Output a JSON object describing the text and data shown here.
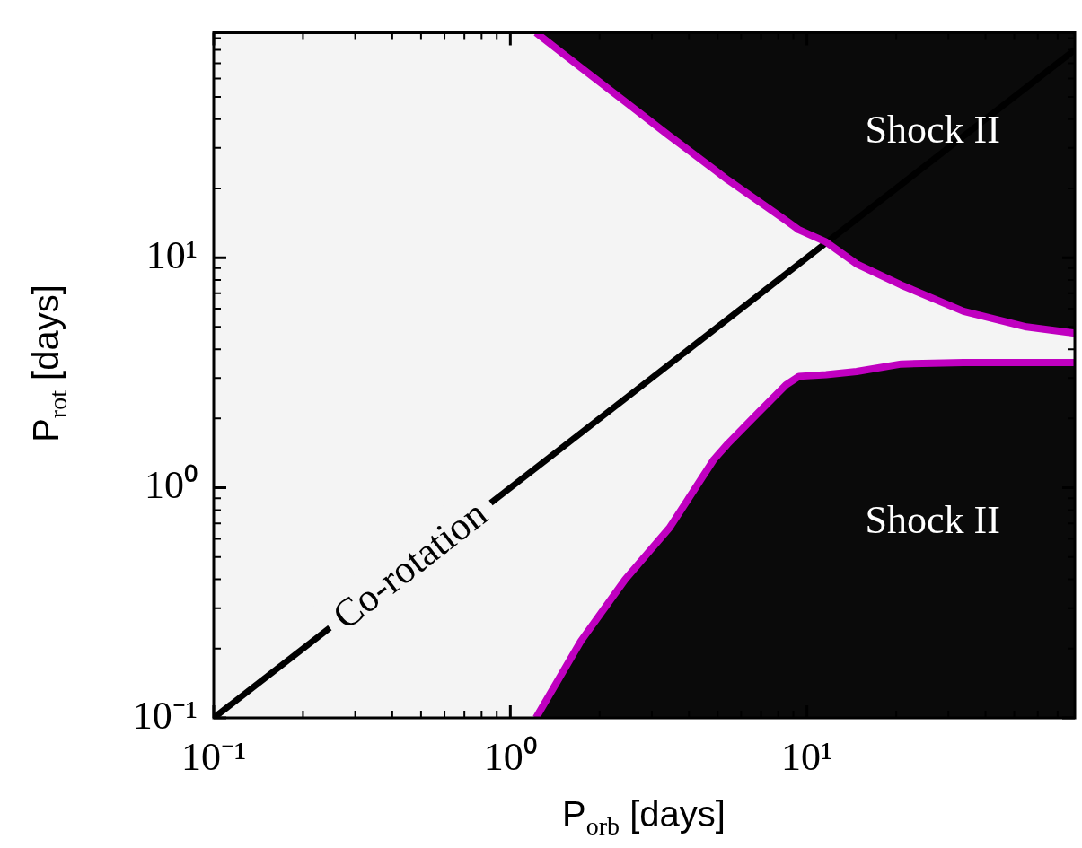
{
  "chart_data": {
    "type": "line",
    "xlabel": "P$_{orb}$ [days]",
    "ylabel": "P$_{rot}$ [days]",
    "x": [
      0.1,
      1.22,
      1.73,
      2.44,
      3.44,
      4.86,
      5.4,
      6.9,
      8.5,
      9.4,
      11.6,
      14.7,
      20.8,
      33.7,
      55,
      80
    ],
    "series": [
      {
        "color": "#c000c0",
        "values": [
          null,
          95,
          67,
          47.6,
          33.8,
          24.2,
          21.8,
          17.5,
          14.5,
          13.2,
          11.7,
          9.4,
          7.6,
          5.85,
          5.0,
          4.7
        ],
        "upper": [
          95,
          95,
          67,
          47.6,
          33.8,
          24.2,
          21.8,
          17.5,
          14.5,
          13.2,
          11.7,
          9.4,
          7.6,
          5.85,
          5.0,
          4.7
        ],
        "lower": [
          0.1,
          0.1,
          0.216,
          0.4,
          0.67,
          1.33,
          1.55,
          2.14,
          2.8,
          3.05,
          3.1,
          3.2,
          3.45,
          3.5,
          3.5,
          3.5
        ]
      },
      {
        "color": "#c000c0",
        "values": [
          null,
          0.1,
          0.216,
          0.4,
          0.67,
          1.33,
          1.55,
          2.14,
          2.8,
          3.05,
          3.1,
          3.2,
          3.45,
          3.5,
          3.5,
          3.5
        ]
      },
      {
        "color": "#000000",
        "x": [
          0.1,
          80
        ],
        "values": [
          0.1,
          80
        ]
      }
    ],
    "xlim": [
      0.1,
      80
    ],
    "ylim": [
      0.1,
      95
    ],
    "xticks": [
      {
        "value": 0.1,
        "label": "10⁻¹"
      },
      {
        "value": 0.2,
        "label": null
      },
      {
        "value": 0.3,
        "label": null
      },
      {
        "value": 0.4,
        "label": null
      },
      {
        "value": 0.5,
        "label": null
      },
      {
        "value": 0.6,
        "label": null
      },
      {
        "value": 0.7,
        "label": null
      },
      {
        "value": 0.8,
        "label": null
      },
      {
        "value": 0.9,
        "label": null
      },
      {
        "value": 1,
        "label": "10⁰"
      },
      {
        "value": 2,
        "label": null
      },
      {
        "value": 3,
        "label": null
      },
      {
        "value": 4,
        "label": null
      },
      {
        "value": 5,
        "label": null
      },
      {
        "value": 6,
        "label": null
      },
      {
        "value": 7,
        "label": null
      },
      {
        "value": 8,
        "label": null
      },
      {
        "value": 9,
        "label": null
      },
      {
        "value": 10,
        "label": "10¹"
      },
      {
        "value": 20,
        "label": null
      },
      {
        "value": 30,
        "label": null
      },
      {
        "value": 40,
        "label": null
      },
      {
        "value": 50,
        "label": null
      },
      {
        "value": 60,
        "label": null
      },
      {
        "value": 70,
        "label": null
      }
    ],
    "yticks": [
      {
        "value": 0.1,
        "label": "10⁻¹"
      },
      {
        "value": 0.2,
        "label": null
      },
      {
        "value": 0.3,
        "label": null
      },
      {
        "value": 0.4,
        "label": null
      },
      {
        "value": 0.5,
        "label": null
      },
      {
        "value": 0.6,
        "label": null
      },
      {
        "value": 0.7,
        "label": null
      },
      {
        "value": 0.8,
        "label": null
      },
      {
        "value": 0.9,
        "label": null
      },
      {
        "value": 1,
        "label": "10⁰"
      },
      {
        "value": 2,
        "label": null
      },
      {
        "value": 3,
        "label": null
      },
      {
        "value": 4,
        "label": null
      },
      {
        "value": 5,
        "label": null
      },
      {
        "value": 6,
        "label": null
      },
      {
        "value": 7,
        "label": null
      },
      {
        "value": 8,
        "label": null
      },
      {
        "value": 9,
        "label": null
      },
      {
        "value": 10,
        "label": "10¹"
      },
      {
        "value": 20,
        "label": null
      },
      {
        "value": 30,
        "label": null
      },
      {
        "value": 40,
        "label": null
      },
      {
        "value": 50,
        "label": null
      },
      {
        "value": 60,
        "label": null
      },
      {
        "value": 70,
        "label": null
      },
      {
        "value": 80,
        "label": null
      },
      {
        "value": 90,
        "label": null
      }
    ],
    "log": "xy",
    "annotations": [
      "Shock II",
      "Shock II",
      {
        "text": "Co-rotation",
        "x": 0.46,
        "y": 0.46
      }
    ]
  }
}
